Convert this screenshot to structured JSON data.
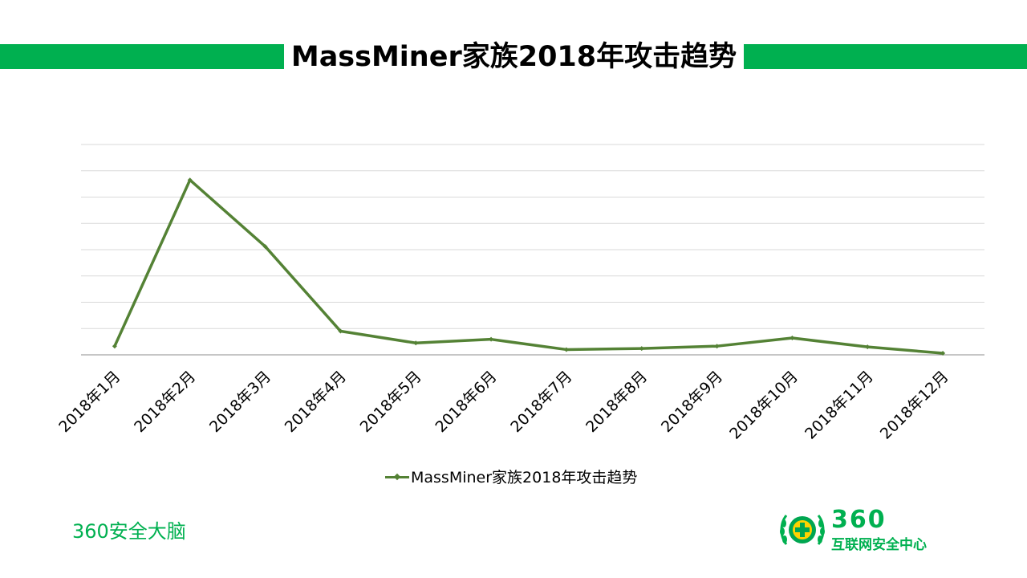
{
  "slide": {
    "title": "MassMiner家族2018年攻击趋势",
    "footer_left": "360安全大脑",
    "logo": {
      "number": "360",
      "subtitle": "互联网安全中心"
    }
  },
  "colors": {
    "accent": "#00b050",
    "line": "#548235",
    "grid": "#d9d9d9",
    "axis": "#8c8c8c"
  },
  "chart_data": {
    "type": "line",
    "categories": [
      "2018年1月",
      "2018年2月",
      "2018年3月",
      "2018年4月",
      "2018年5月",
      "2018年6月",
      "2018年7月",
      "2018年8月",
      "2018年9月",
      "2018年10月",
      "2018年11月",
      "2018年12月"
    ],
    "series": [
      {
        "name": "MassMiner家族2018年攻击趋势",
        "values": [
          3.3,
          66.5,
          41.2,
          9.0,
          4.5,
          5.9,
          2.0,
          2.4,
          3.3,
          6.4,
          3.0,
          0.6
        ]
      }
    ],
    "ylim": [
      0,
      80
    ],
    "y_gridlines": 8,
    "y_tick_labels_shown": false,
    "legend_position": "bottom",
    "grid": true
  }
}
